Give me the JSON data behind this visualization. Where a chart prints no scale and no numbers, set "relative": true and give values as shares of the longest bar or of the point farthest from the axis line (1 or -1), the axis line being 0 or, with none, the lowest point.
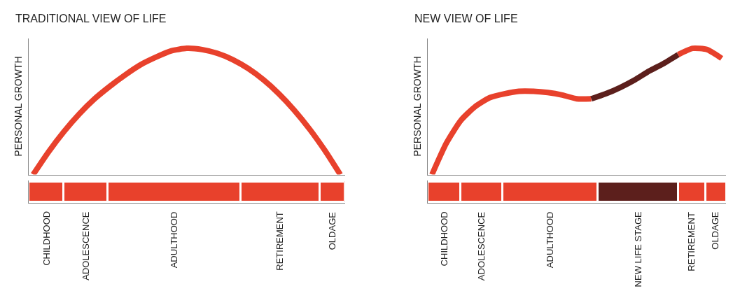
{
  "chart_data": [
    {
      "type": "line",
      "title": "TRADITIONAL VIEW OF LIFE",
      "ylabel": "PERSONAL GROWTH",
      "relative": true,
      "marker": "none",
      "line_style": "solid",
      "tick_labels": false,
      "categories": [
        null,
        null,
        null,
        null,
        null,
        null,
        null,
        null,
        null,
        null,
        null,
        null,
        null,
        null,
        null,
        null,
        null,
        null,
        null,
        null,
        null
      ],
      "series": [
        {
          "color": "#e8412c",
          "values": [
            0,
            0.18,
            0.34,
            0.48,
            0.6,
            0.7,
            0.79,
            0.87,
            0.93,
            0.98,
            1,
            0.99,
            0.96,
            0.91,
            0.84,
            0.75,
            0.64,
            0.51,
            0.36,
            0.19,
            0
          ]
        }
      ]
    },
    {
      "type": "bar",
      "orientation": "horizontal",
      "stacked": true,
      "relative": true,
      "tick_labels": false,
      "categories": [
        null
      ],
      "series": [
        {
          "name": "CHILDHOOD",
          "color": "#e8412c",
          "values": [
            0.11
          ]
        },
        {
          "name": "ADOLESCENCE",
          "color": "#e8412c",
          "values": [
            0.14
          ]
        },
        {
          "name": "ADULTHOOD",
          "color": "#e8412c",
          "values": [
            0.42
          ]
        },
        {
          "name": "RETIREMENT",
          "color": "#e8412c",
          "values": [
            0.25
          ]
        },
        {
          "name": "OLDAGE",
          "color": "#e8412c",
          "values": [
            0.08
          ]
        }
      ]
    },
    {
      "type": "line",
      "title": "NEW VIEW OF LIFE",
      "ylabel": "PERSONAL GROWTH",
      "relative": true,
      "marker": "none",
      "line_style": "solid",
      "tick_labels": false,
      "categories": [
        null,
        null,
        null,
        null,
        null,
        null,
        null,
        null,
        null,
        null,
        null,
        null,
        null,
        null,
        null,
        null,
        null,
        null,
        null,
        null,
        null
      ],
      "series": [
        {
          "color": "#e8412c",
          "values": [
            0,
            0.25,
            0.43,
            0.54,
            0.61,
            0.64,
            0.66,
            0.66,
            0.65,
            0.63,
            0.6,
            0.6,
            null,
            null,
            null,
            null,
            null,
            null,
            null,
            null,
            null
          ]
        },
        {
          "color": "#5c1f1c",
          "values": [
            null,
            null,
            null,
            null,
            null,
            null,
            null,
            null,
            null,
            null,
            null,
            0.6,
            0.64,
            0.69,
            0.75,
            0.82,
            0.88,
            0.95,
            null,
            null,
            null
          ]
        },
        {
          "color": "#e8412c",
          "values": [
            null,
            null,
            null,
            null,
            null,
            null,
            null,
            null,
            null,
            null,
            null,
            null,
            null,
            null,
            null,
            null,
            null,
            0.95,
            1,
            0.99,
            0.92
          ]
        }
      ]
    },
    {
      "type": "bar",
      "orientation": "horizontal",
      "stacked": true,
      "relative": true,
      "tick_labels": false,
      "categories": [
        null
      ],
      "series": [
        {
          "name": "CHILDHOOD",
          "color": "#e8412c",
          "values": [
            0.11
          ]
        },
        {
          "name": "ADOLESCENCE",
          "color": "#e8412c",
          "values": [
            0.14
          ]
        },
        {
          "name": "ADULTHOOD",
          "color": "#e8412c",
          "values": [
            0.32
          ]
        },
        {
          "name": "NEW LIFE STAGE",
          "color": "#5c1f1c",
          "values": [
            0.27
          ]
        },
        {
          "name": "RETIREMENT",
          "color": "#e8412c",
          "values": [
            0.09
          ]
        },
        {
          "name": "OLDAGE",
          "color": "#e8412c",
          "values": [
            0.07
          ]
        }
      ]
    }
  ]
}
